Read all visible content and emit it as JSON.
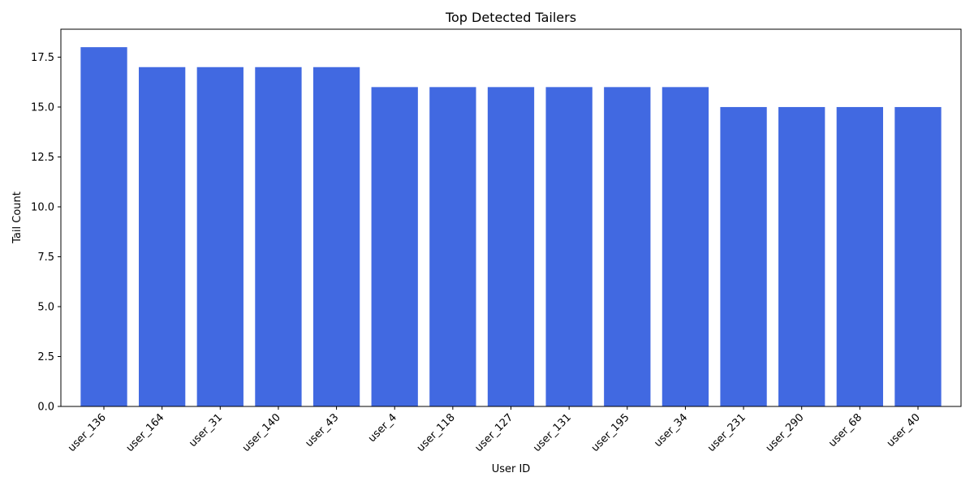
{
  "chart_data": {
    "type": "bar",
    "title": "Top Detected Tailers",
    "xlabel": "User ID",
    "ylabel": "Tail Count",
    "categories": [
      "user_136",
      "user_164",
      "user_31",
      "user_140",
      "user_43",
      "user_4",
      "user_118",
      "user_127",
      "user_131",
      "user_195",
      "user_34",
      "user_231",
      "user_290",
      "user_68",
      "user_40"
    ],
    "values": [
      18,
      17,
      17,
      17,
      17,
      16,
      16,
      16,
      16,
      16,
      16,
      15,
      15,
      15,
      15
    ],
    "ylim": [
      0,
      18.9
    ],
    "yticks": [
      "0.0",
      "2.5",
      "5.0",
      "7.5",
      "10.0",
      "12.5",
      "15.0",
      "17.5"
    ],
    "bar_color": "#4169e1",
    "grid": false,
    "legend": "none"
  }
}
